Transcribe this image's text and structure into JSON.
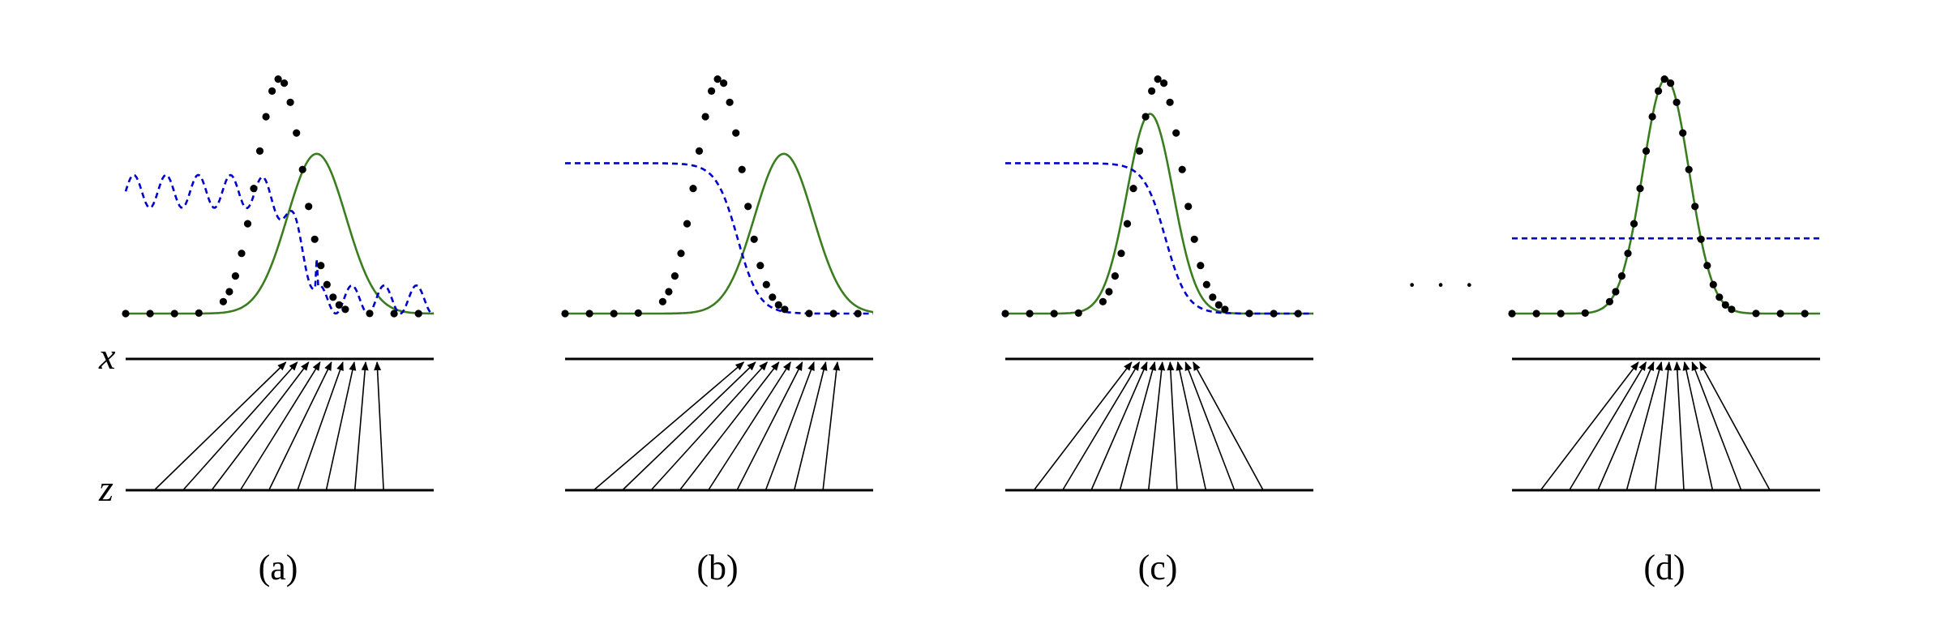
{
  "axis_labels": {
    "x": "x",
    "z": "z"
  },
  "ellipsis": "· · ·",
  "colors": {
    "data": "#000000",
    "generator": "#3a7d1e",
    "discriminator": "#0000cc",
    "lines": "#000000"
  },
  "legend_roles": {
    "data": "black dotted curve",
    "generator": "green solid curve",
    "discriminator": "blue dashed curve"
  },
  "panels": [
    {
      "label": "(a)",
      "generator_mean": 0.62,
      "generator_sigma": 0.095,
      "generator_peak": 0.68,
      "discriminator": "wavy",
      "disc_level": 0.52
    },
    {
      "label": "(b)",
      "generator_mean": 0.71,
      "generator_sigma": 0.095,
      "generator_peak": 0.68,
      "discriminator": "sigmoid",
      "disc_level": 0.64
    },
    {
      "label": "(c)",
      "generator_mean": 0.47,
      "generator_sigma": 0.075,
      "generator_peak": 0.85,
      "discriminator": "sigmoid",
      "disc_level": 0.64
    },
    {
      "label": "(d)",
      "generator_mean": 0.5,
      "generator_sigma": 0.075,
      "generator_peak": 1.0,
      "discriminator": "flat",
      "disc_level": 0.32
    }
  ]
}
